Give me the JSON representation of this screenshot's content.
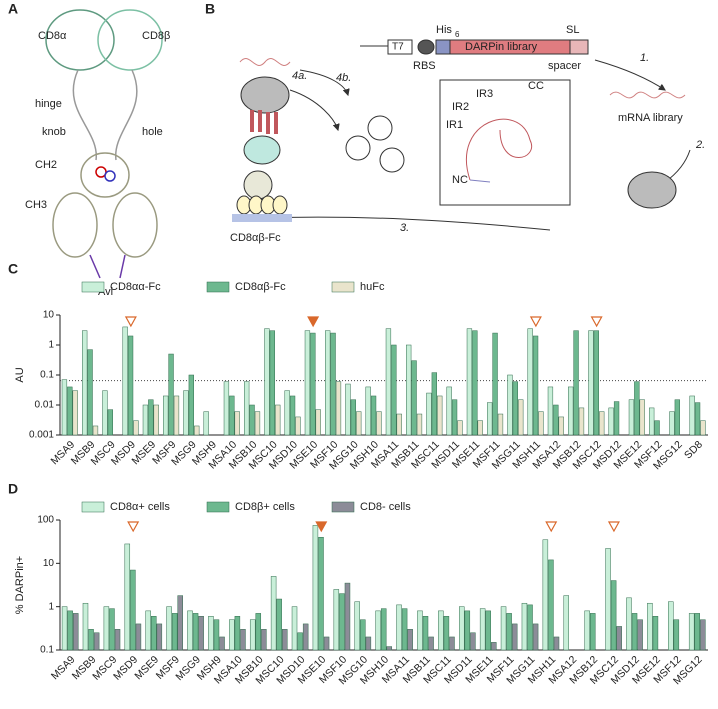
{
  "panel_a": {
    "label": "A",
    "texts": [
      "CD8α",
      "CD8β",
      "hinge",
      "knob",
      "hole",
      "CH2",
      "CH3",
      "Avi"
    ]
  },
  "panel_b": {
    "label": "B",
    "texts": [
      "T7",
      "His",
      "6",
      "RBS",
      "DARPin library",
      "SL",
      "spacer",
      "1.",
      "mRNA library",
      "2.",
      "3.",
      "4a.",
      "4b.",
      "CD8αβ-Fc",
      "IR1",
      "IR2",
      "IR3",
      "CC",
      "NC"
    ]
  },
  "chart_data": [
    {
      "type": "bar",
      "panel": "C",
      "ylabel": "AU",
      "log": true,
      "ylim": [
        0.001,
        10
      ],
      "yticks": [
        0.001,
        0.01,
        0.1,
        1,
        10
      ],
      "reference_line": 0.065,
      "categories": [
        "MSA9",
        "MSB9",
        "MSC9",
        "MSD9",
        "MSE9",
        "MSF9",
        "MSG9",
        "MSH9",
        "MSA10",
        "MSB10",
        "MSC10",
        "MSD10",
        "MSE10",
        "MSF10",
        "MSG10",
        "MSH10",
        "MSA11",
        "MSB11",
        "MSC11",
        "MSD11",
        "MSE11",
        "MSF11",
        "MSG11",
        "MSH11",
        "MSA12",
        "MSB12",
        "MSC12",
        "MSD12",
        "MSE12",
        "MSF12",
        "MSG12",
        "SD8"
      ],
      "series": [
        {
          "name": "CD8αα-Fc",
          "color": "#c9efd9",
          "values": [
            0.07,
            3,
            0.03,
            4,
            0.01,
            0.02,
            0.03,
            0.006,
            0.06,
            0.06,
            3.5,
            0.03,
            3,
            3,
            0.05,
            0.04,
            3.5,
            1,
            0.025,
            0.04,
            3.5,
            0.012,
            0.1,
            3.5,
            0.04,
            0.04,
            3,
            0.008,
            0.015,
            0.008,
            0.006,
            0.02
          ]
        },
        {
          "name": "CD8αβ-Fc",
          "color": "#6db88f",
          "values": [
            0.04,
            0.7,
            0.007,
            2,
            0.015,
            0.5,
            0.1,
            null,
            0.02,
            0.01,
            3,
            0.02,
            2.5,
            2.5,
            0.015,
            0.02,
            1,
            0.3,
            0.12,
            0.015,
            3,
            2.5,
            0.06,
            2,
            0.01,
            3,
            3,
            0.013,
            0.06,
            0.003,
            0.015,
            0.012
          ]
        },
        {
          "name": "huFc",
          "color": "#e9e4cc",
          "values": [
            0.03,
            0.002,
            null,
            0.003,
            0.01,
            0.02,
            0.002,
            null,
            0.006,
            0.006,
            0.01,
            0.004,
            0.007,
            0.06,
            0.006,
            0.006,
            0.005,
            0.005,
            0.02,
            0.003,
            0.003,
            0.005,
            0.015,
            0.006,
            0.004,
            0.008,
            0.006,
            null,
            0.015,
            null,
            null,
            0.003
          ]
        }
      ],
      "markers": [
        {
          "index": 3,
          "filled": false
        },
        {
          "index": 12,
          "filled": true
        },
        {
          "index": 23,
          "filled": false
        },
        {
          "index": 26,
          "filled": false
        }
      ]
    },
    {
      "type": "bar",
      "panel": "D",
      "ylabel": "% DARPin+",
      "log": true,
      "ylim": [
        0.1,
        100
      ],
      "yticks": [
        0.1,
        1,
        10,
        100
      ],
      "categories": [
        "MSA9",
        "MSB9",
        "MSC9",
        "MSD9",
        "MSE9",
        "MSF9",
        "MSG9",
        "MSH9",
        "MSA10",
        "MSB10",
        "MSC10",
        "MSD10",
        "MSE10",
        "MSF10",
        "MSG10",
        "MSH10",
        "MSA11",
        "MSB11",
        "MSC11",
        "MSD11",
        "MSE11",
        "MSF11",
        "MSG11",
        "MSH11",
        "MSA12",
        "MSB12",
        "MSC12",
        "MSD12",
        "MSE12",
        "MSF12",
        "MSG12"
      ],
      "series": [
        {
          "name": "CD8α+ cells",
          "color": "#c9efd9",
          "values": [
            1,
            1.2,
            1,
            28,
            0.8,
            1,
            0.8,
            0.6,
            0.5,
            0.5,
            5,
            1,
            75,
            2.5,
            1.3,
            0.8,
            1.1,
            0.8,
            0.8,
            1,
            0.9,
            1,
            1.2,
            35,
            1.8,
            0.8,
            22,
            1.6,
            1.2,
            1.3,
            0.7
          ]
        },
        {
          "name": "CD8β+ cells",
          "color": "#6db88f",
          "values": [
            0.8,
            0.3,
            0.9,
            7,
            0.6,
            0.7,
            0.7,
            0.5,
            0.6,
            0.7,
            1.5,
            0.25,
            40,
            2,
            0.5,
            0.9,
            0.9,
            0.6,
            0.6,
            0.8,
            0.8,
            0.7,
            1.1,
            12,
            null,
            0.7,
            4,
            0.7,
            0.6,
            0.5,
            0.7
          ]
        },
        {
          "name": "CD8- cells",
          "color": "#8c8c98",
          "values": [
            0.7,
            0.25,
            0.3,
            0.4,
            0.4,
            1.8,
            0.6,
            0.2,
            0.3,
            0.3,
            0.3,
            0.4,
            0.2,
            3.5,
            0.2,
            0.12,
            0.3,
            0.2,
            0.2,
            0.25,
            0.15,
            0.4,
            0.4,
            0.2,
            null,
            null,
            0.35,
            0.5,
            null,
            null,
            0.5
          ]
        }
      ],
      "markers": [
        {
          "index": 3,
          "filled": false
        },
        {
          "index": 12,
          "filled": true
        },
        {
          "index": 23,
          "filled": false
        },
        {
          "index": 26,
          "filled": false
        }
      ]
    }
  ]
}
